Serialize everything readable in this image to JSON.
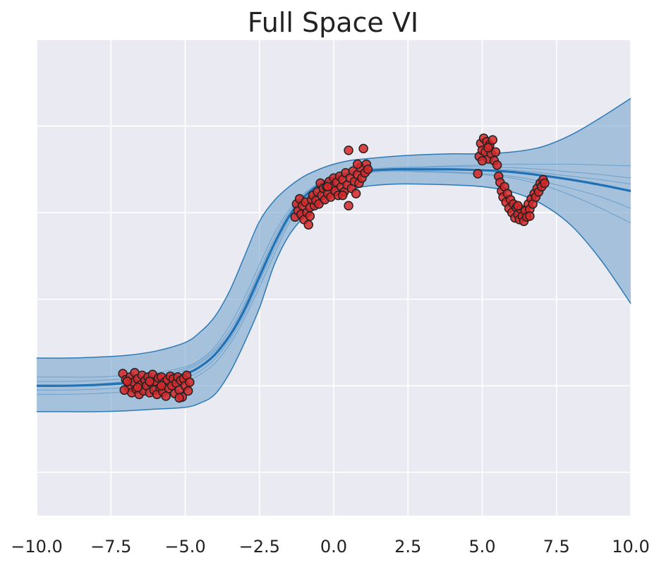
{
  "chart_data": {
    "type": "line",
    "title": "Full Space VI",
    "xlabel": "",
    "ylabel": "",
    "xlim": [
      -10.0,
      10.0
    ],
    "ylim": [
      -2.5,
      3.0
    ],
    "x_ticks": [
      "−10.0",
      "−7.5",
      "−5.0",
      "−2.5",
      "0.0",
      "2.5",
      "5.0",
      "7.5",
      "10.0"
    ],
    "x_tick_values": [
      -10.0,
      -7.5,
      -5.0,
      -2.5,
      0.0,
      2.5,
      5.0,
      7.5,
      10.0
    ],
    "y_gridlines": [
      -2.0,
      -1.0,
      0.0,
      1.0,
      2.0,
      3.0
    ],
    "y_ticks_shown": false,
    "grid": true,
    "legend": "none",
    "colors": {
      "background": "#eaeaf2",
      "grid": "#ffffff",
      "band_fill": "#6b9fca",
      "band_edge": "#2c7bb6",
      "mean_line": "#2171b5",
      "sample_line": "#2c7bb6",
      "point_fill": "#d62728",
      "point_edge": "#222222"
    },
    "mean_curve": {
      "x": [
        -10.0,
        -9.0,
        -8.0,
        -7.0,
        -6.0,
        -5.0,
        -4.5,
        -4.0,
        -3.5,
        -3.0,
        -2.5,
        -2.0,
        -1.5,
        -1.0,
        -0.5,
        0.0,
        0.5,
        1.0,
        2.0,
        3.0,
        4.0,
        5.0,
        6.0,
        7.0,
        8.0,
        9.0,
        10.0
      ],
      "y": [
        -1.0,
        -1.0,
        -0.99,
        -0.97,
        -0.93,
        -0.86,
        -0.78,
        -0.64,
        -0.42,
        -0.12,
        0.26,
        0.64,
        0.96,
        1.18,
        1.32,
        1.4,
        1.45,
        1.48,
        1.5,
        1.5,
        1.5,
        1.49,
        1.47,
        1.43,
        1.38,
        1.32,
        1.25
      ]
    },
    "band_upper": {
      "x": [
        -10.0,
        -9.0,
        -8.0,
        -7.0,
        -6.0,
        -5.0,
        -4.5,
        -4.0,
        -3.5,
        -3.0,
        -2.5,
        -2.0,
        -1.5,
        -1.0,
        -0.5,
        0.0,
        0.5,
        1.0,
        2.0,
        3.0,
        4.0,
        5.0,
        6.0,
        7.0,
        8.0,
        9.0,
        10.0
      ],
      "y": [
        -0.68,
        -0.68,
        -0.67,
        -0.65,
        -0.6,
        -0.5,
        -0.38,
        -0.2,
        0.1,
        0.5,
        0.9,
        1.14,
        1.3,
        1.42,
        1.5,
        1.56,
        1.6,
        1.62,
        1.65,
        1.67,
        1.68,
        1.68,
        1.7,
        1.76,
        1.9,
        2.1,
        2.32
      ]
    },
    "band_lower": {
      "x": [
        -10.0,
        -9.0,
        -8.0,
        -7.0,
        -6.0,
        -5.0,
        -4.5,
        -4.0,
        -3.5,
        -3.0,
        -2.5,
        -2.0,
        -1.5,
        -1.0,
        -0.5,
        0.0,
        0.5,
        1.0,
        2.0,
        3.0,
        4.0,
        5.0,
        6.0,
        7.0,
        8.0,
        9.0,
        10.0
      ],
      "y": [
        -1.3,
        -1.3,
        -1.3,
        -1.29,
        -1.27,
        -1.25,
        -1.2,
        -1.1,
        -0.85,
        -0.5,
        -0.1,
        0.4,
        0.74,
        0.95,
        1.08,
        1.18,
        1.25,
        1.3,
        1.33,
        1.33,
        1.32,
        1.3,
        1.24,
        1.1,
        0.85,
        0.45,
        -0.05
      ]
    },
    "posterior_samples": [
      {
        "y": [
          -0.95,
          -0.95,
          -0.94,
          -0.92,
          -0.88,
          -0.8,
          -0.72,
          -0.58,
          -0.36,
          -0.05,
          0.33,
          0.7,
          1.0,
          1.2,
          1.33,
          1.41,
          1.46,
          1.49,
          1.51,
          1.52,
          1.53,
          1.53,
          1.52,
          1.5,
          1.47,
          1.44,
          1.4
        ]
      },
      {
        "y": [
          -1.05,
          -1.05,
          -1.04,
          -1.02,
          -0.98,
          -0.91,
          -0.83,
          -0.69,
          -0.47,
          -0.17,
          0.2,
          0.58,
          0.92,
          1.15,
          1.3,
          1.39,
          1.44,
          1.47,
          1.49,
          1.48,
          1.47,
          1.45,
          1.42,
          1.36,
          1.28,
          1.18,
          1.05
        ]
      },
      {
        "y": [
          -0.9,
          -0.9,
          -0.9,
          -0.88,
          -0.85,
          -0.78,
          -0.7,
          -0.55,
          -0.3,
          0.02,
          0.4,
          0.76,
          1.03,
          1.22,
          1.34,
          1.42,
          1.47,
          1.5,
          1.52,
          1.53,
          1.54,
          1.55,
          1.56,
          1.56,
          1.56,
          1.55,
          1.54
        ]
      },
      {
        "y": [
          -1.1,
          -1.1,
          -1.09,
          -1.07,
          -1.03,
          -0.95,
          -0.87,
          -0.74,
          -0.52,
          -0.22,
          0.14,
          0.52,
          0.88,
          1.12,
          1.28,
          1.37,
          1.43,
          1.46,
          1.48,
          1.47,
          1.46,
          1.44,
          1.4,
          1.32,
          1.2,
          1.05,
          0.88
        ]
      },
      {
        "y": [
          -1.0,
          -1.0,
          -0.98,
          -0.95,
          -0.9,
          -0.82,
          -0.74,
          -0.6,
          -0.4,
          -0.08,
          0.3,
          0.66,
          0.97,
          1.19,
          1.32,
          1.4,
          1.45,
          1.48,
          1.5,
          1.51,
          1.51,
          1.5,
          1.49,
          1.46,
          1.42,
          1.38,
          1.33
        ]
      }
    ],
    "scatter_points": [
      [
        -7.1,
        -0.86
      ],
      [
        -7.0,
        -0.93
      ],
      [
        -6.9,
        -1.02
      ],
      [
        -6.85,
        -0.9
      ],
      [
        -6.8,
        -1.08
      ],
      [
        -6.75,
        -0.96
      ],
      [
        -6.7,
        -0.85
      ],
      [
        -6.65,
        -1.04
      ],
      [
        -6.6,
        -0.92
      ],
      [
        -6.55,
        -1.1
      ],
      [
        -6.5,
        -0.99
      ],
      [
        -6.45,
        -0.88
      ],
      [
        -6.4,
        -1.06
      ],
      [
        -6.35,
        -0.94
      ],
      [
        -6.3,
        -1.0
      ],
      [
        -6.25,
        -0.9
      ],
      [
        -6.2,
        -1.08
      ],
      [
        -6.15,
        -0.97
      ],
      [
        -6.1,
        -0.87
      ],
      [
        -6.05,
        -1.05
      ],
      [
        -6.0,
        -0.95
      ],
      [
        -5.95,
        -1.1
      ],
      [
        -5.9,
        -0.91
      ],
      [
        -5.85,
        -1.02
      ],
      [
        -5.8,
        -0.9
      ],
      [
        -5.75,
        -1.07
      ],
      [
        -5.7,
        -0.96
      ],
      [
        -5.65,
        -1.12
      ],
      [
        -5.6,
        -0.93
      ],
      [
        -5.55,
        -1.03
      ],
      [
        -5.5,
        -0.89
      ],
      [
        -5.45,
        -1.0
      ],
      [
        -5.4,
        -0.92
      ],
      [
        -5.35,
        -1.09
      ],
      [
        -5.3,
        -0.97
      ],
      [
        -5.25,
        -0.9
      ],
      [
        -5.2,
        -1.05
      ],
      [
        -5.15,
        -0.94
      ],
      [
        -5.1,
        -1.13
      ],
      [
        -5.05,
        -0.92
      ],
      [
        -5.0,
        -1.0
      ],
      [
        -4.95,
        -0.88
      ],
      [
        -4.9,
        -1.06
      ],
      [
        -4.85,
        -0.96
      ],
      [
        -7.05,
        -1.05
      ],
      [
        -6.95,
        -0.95
      ],
      [
        -6.6,
        -1.02
      ],
      [
        -6.2,
        -0.95
      ],
      [
        -5.8,
        -1.0
      ],
      [
        -5.2,
        -1.14
      ],
      [
        -1.3,
        0.95
      ],
      [
        -1.25,
        1.1
      ],
      [
        -1.2,
        1.02
      ],
      [
        -1.15,
        1.16
      ],
      [
        -1.1,
        0.98
      ],
      [
        -1.05,
        1.08
      ],
      [
        -1.0,
        0.92
      ],
      [
        -0.95,
        1.12
      ],
      [
        -0.9,
        1.0
      ],
      [
        -0.85,
        0.86
      ],
      [
        -0.8,
        1.06
      ],
      [
        -0.75,
        1.15
      ],
      [
        -0.7,
        1.2
      ],
      [
        -0.65,
        1.08
      ],
      [
        -0.6,
        1.14
      ],
      [
        -0.55,
        1.24
      ],
      [
        -0.5,
        1.1
      ],
      [
        -0.45,
        1.34
      ],
      [
        -0.4,
        1.2
      ],
      [
        -0.35,
        1.28
      ],
      [
        -0.3,
        1.15
      ],
      [
        -0.25,
        1.3
      ],
      [
        -0.2,
        1.22
      ],
      [
        -0.15,
        1.36
      ],
      [
        -0.1,
        1.18
      ],
      [
        -0.05,
        1.3
      ],
      [
        0.0,
        1.4
      ],
      [
        0.05,
        1.25
      ],
      [
        0.1,
        1.35
      ],
      [
        0.15,
        1.2
      ],
      [
        0.2,
        1.42
      ],
      [
        0.25,
        1.3
      ],
      [
        0.3,
        1.38
      ],
      [
        0.35,
        1.24
      ],
      [
        0.4,
        1.46
      ],
      [
        0.45,
        1.32
      ],
      [
        0.5,
        1.08
      ],
      [
        0.55,
        1.4
      ],
      [
        0.6,
        1.28
      ],
      [
        0.65,
        1.48
      ],
      [
        0.7,
        1.36
      ],
      [
        0.75,
        1.22
      ],
      [
        0.8,
        1.44
      ],
      [
        0.85,
        1.34
      ],
      [
        0.9,
        1.52
      ],
      [
        0.95,
        1.4
      ],
      [
        1.0,
        1.74
      ],
      [
        1.05,
        1.46
      ],
      [
        1.1,
        1.56
      ],
      [
        1.15,
        1.5
      ],
      [
        0.5,
        1.72
      ],
      [
        -0.8,
        0.96
      ],
      [
        0.3,
        1.2
      ],
      [
        -0.2,
        1.3
      ],
      [
        0.8,
        1.56
      ],
      [
        4.9,
        1.65
      ],
      [
        4.95,
        1.8
      ],
      [
        5.0,
        1.72
      ],
      [
        5.05,
        1.86
      ],
      [
        5.1,
        1.7
      ],
      [
        5.15,
        1.82
      ],
      [
        5.2,
        1.62
      ],
      [
        5.25,
        1.78
      ],
      [
        5.3,
        1.68
      ],
      [
        5.35,
        1.84
      ],
      [
        5.4,
        1.6
      ],
      [
        5.45,
        1.7
      ],
      [
        5.5,
        1.55
      ],
      [
        5.55,
        1.42
      ],
      [
        5.6,
        1.35
      ],
      [
        5.65,
        1.25
      ],
      [
        5.7,
        1.18
      ],
      [
        5.75,
        1.3
      ],
      [
        5.8,
        1.12
      ],
      [
        5.85,
        1.22
      ],
      [
        5.9,
        1.05
      ],
      [
        5.95,
        1.15
      ],
      [
        6.0,
        1.0
      ],
      [
        6.05,
        1.1
      ],
      [
        6.1,
        0.94
      ],
      [
        6.15,
        1.06
      ],
      [
        6.2,
        0.98
      ],
      [
        6.25,
        0.92
      ],
      [
        6.3,
        1.04
      ],
      [
        6.35,
        0.96
      ],
      [
        6.4,
        0.9
      ],
      [
        6.45,
        1.02
      ],
      [
        6.5,
        0.95
      ],
      [
        6.55,
        1.1
      ],
      [
        6.6,
        1.04
      ],
      [
        6.65,
        1.16
      ],
      [
        6.7,
        1.1
      ],
      [
        6.75,
        1.22
      ],
      [
        6.8,
        1.18
      ],
      [
        6.85,
        1.28
      ],
      [
        6.9,
        1.24
      ],
      [
        6.95,
        1.34
      ],
      [
        7.0,
        1.3
      ],
      [
        7.05,
        1.38
      ],
      [
        7.1,
        1.34
      ],
      [
        4.85,
        1.45
      ],
      [
        5.0,
        1.6
      ],
      [
        5.2,
        1.75
      ],
      [
        6.2,
        1.08
      ],
      [
        6.6,
        0.96
      ]
    ]
  }
}
